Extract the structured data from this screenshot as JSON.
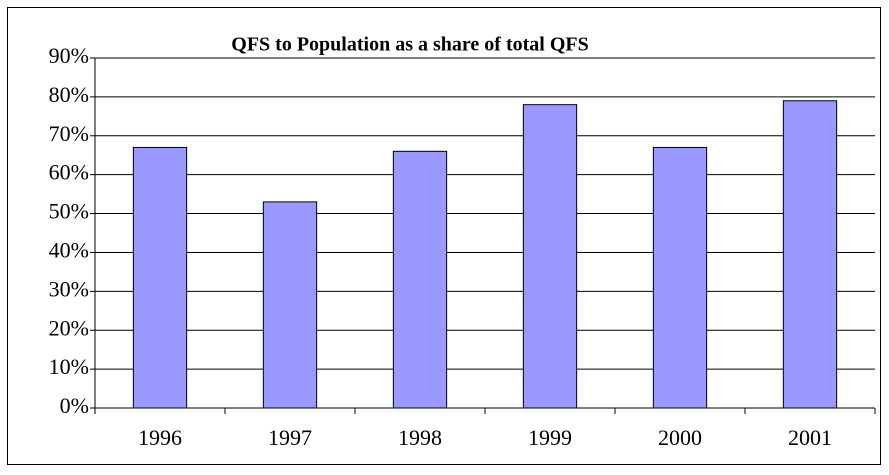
{
  "chart_data": {
    "type": "bar",
    "title": "QFS to Population as a share of total QFS",
    "categories": [
      "1996",
      "1997",
      "1998",
      "1999",
      "2000",
      "2001"
    ],
    "values": [
      67,
      53,
      66,
      78,
      67,
      79
    ],
    "color": "#9999ff",
    "ylim": [
      0,
      90
    ],
    "yticks": [
      {
        "value": 0,
        "label": "0%"
      },
      {
        "value": 10,
        "label": "10%"
      },
      {
        "value": 20,
        "label": "20%"
      },
      {
        "value": 30,
        "label": "30%"
      },
      {
        "value": 40,
        "label": "40%"
      },
      {
        "value": 50,
        "label": "50%"
      },
      {
        "value": 60,
        "label": "60%"
      },
      {
        "value": 70,
        "label": "70%"
      },
      {
        "value": 80,
        "label": "80%"
      },
      {
        "value": 90,
        "label": "90%"
      }
    ],
    "grid": true
  }
}
